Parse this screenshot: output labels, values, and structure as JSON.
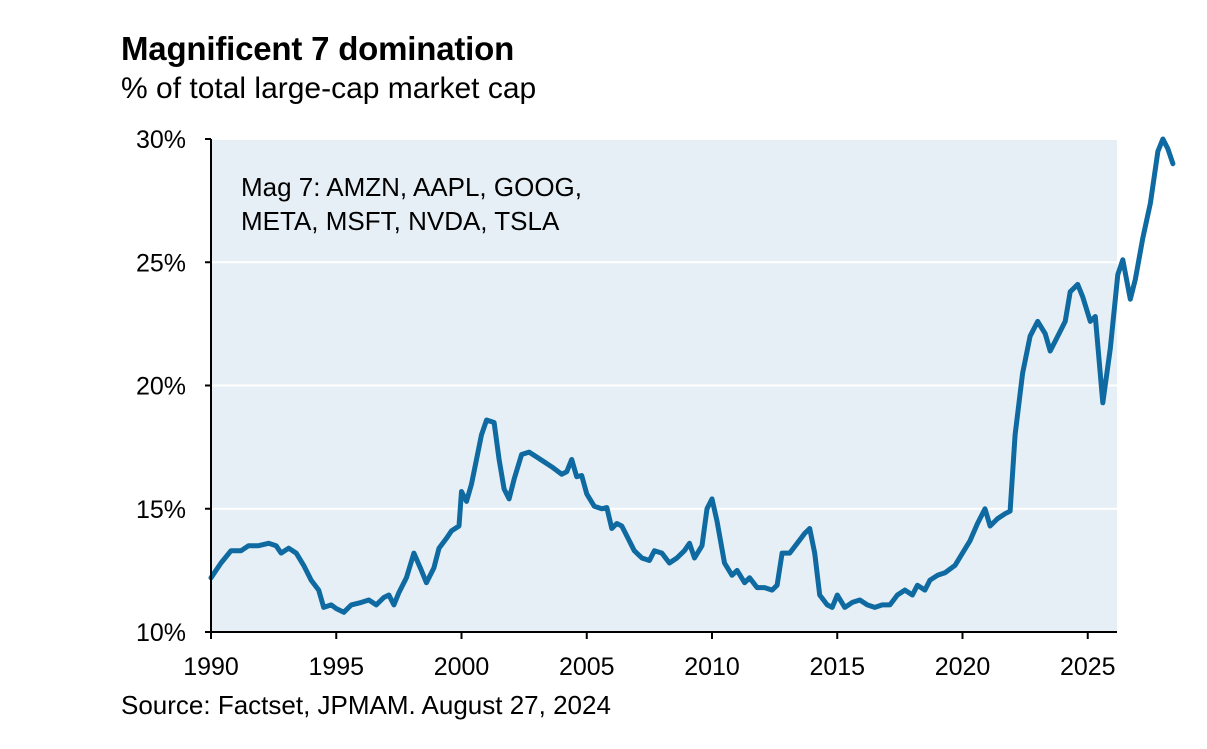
{
  "title": "Magnificent 7 domination",
  "subtitle": "% of total large-cap market cap",
  "source": "Source: Factset, JPMAM. August 27, 2024",
  "colors": {
    "line": "#0e6aa0",
    "plot_bg": "#e6eff6",
    "grid": "#ffffff",
    "axis": "#000000"
  },
  "chart_data": {
    "type": "line",
    "title": "Magnificent 7 domination",
    "subtitle": "% of total large-cap market cap",
    "xlim": [
      1990,
      2025.8
    ],
    "ylim": [
      10,
      30
    ],
    "x_ticks": [
      {
        "value": 1990,
        "label": "1990"
      },
      {
        "value": 1995,
        "label": "1995"
      },
      {
        "value": 2000,
        "label": "2000"
      },
      {
        "value": 2005,
        "label": "2005"
      },
      {
        "value": 2010,
        "label": "2010"
      },
      {
        "value": 2015,
        "label": "2015"
      },
      {
        "value": 2020,
        "label": "2020"
      },
      {
        "value": 2025,
        "label": "2025"
      }
    ],
    "y_ticks": [
      {
        "value": 10,
        "label": "10%"
      },
      {
        "value": 15,
        "label": "15%"
      },
      {
        "value": 20,
        "label": "20%"
      },
      {
        "value": 25,
        "label": "25%"
      },
      {
        "value": 30,
        "label": "30%"
      }
    ],
    "grid": "horizontal",
    "annotation": {
      "lines": [
        "Mag 7: AMZN, AAPL, GOOG,",
        "META, MSFT, NVDA, TSLA"
      ]
    },
    "series": [
      {
        "points": [
          [
            1990.0,
            12.2
          ],
          [
            1990.4,
            12.8
          ],
          [
            1990.8,
            13.3
          ],
          [
            1991.2,
            13.3
          ],
          [
            1991.5,
            13.5
          ],
          [
            1991.9,
            13.5
          ],
          [
            1992.3,
            13.6
          ],
          [
            1992.6,
            13.5
          ],
          [
            1992.8,
            13.2
          ],
          [
            1993.1,
            13.4
          ],
          [
            1993.4,
            13.2
          ],
          [
            1993.7,
            12.7
          ],
          [
            1994.0,
            12.1
          ],
          [
            1994.3,
            11.7
          ],
          [
            1994.5,
            11.0
          ],
          [
            1994.8,
            11.1
          ],
          [
            1995.0,
            10.95
          ],
          [
            1995.3,
            10.8
          ],
          [
            1995.6,
            11.1
          ],
          [
            1996.0,
            11.2
          ],
          [
            1996.3,
            11.3
          ],
          [
            1996.6,
            11.1
          ],
          [
            1996.9,
            11.4
          ],
          [
            1997.1,
            11.5
          ],
          [
            1997.3,
            11.1
          ],
          [
            1997.5,
            11.6
          ],
          [
            1997.8,
            12.2
          ],
          [
            1998.1,
            13.2
          ],
          [
            1998.4,
            12.5
          ],
          [
            1998.6,
            12.0
          ],
          [
            1998.9,
            12.6
          ],
          [
            1999.1,
            13.4
          ],
          [
            1999.4,
            13.8
          ],
          [
            1999.6,
            14.1
          ],
          [
            1999.9,
            14.3
          ],
          [
            2000.0,
            15.7
          ],
          [
            2000.2,
            15.3
          ],
          [
            2000.4,
            16.0
          ],
          [
            2000.8,
            18.0
          ],
          [
            2001.0,
            18.6
          ],
          [
            2001.3,
            18.5
          ],
          [
            2001.5,
            17.0
          ],
          [
            2001.7,
            15.8
          ],
          [
            2001.9,
            15.4
          ],
          [
            2002.1,
            16.2
          ],
          [
            2002.4,
            17.2
          ],
          [
            2002.7,
            17.3
          ],
          [
            2003.0,
            17.1
          ],
          [
            2003.3,
            16.9
          ],
          [
            2003.6,
            16.7
          ],
          [
            2004.0,
            16.4
          ],
          [
            2004.2,
            16.5
          ],
          [
            2004.4,
            17.0
          ],
          [
            2004.6,
            16.3
          ],
          [
            2004.8,
            16.35
          ],
          [
            2005.0,
            15.6
          ],
          [
            2005.3,
            15.1
          ],
          [
            2005.6,
            15.0
          ],
          [
            2005.8,
            15.05
          ],
          [
            2006.0,
            14.2
          ],
          [
            2006.2,
            14.4
          ],
          [
            2006.4,
            14.3
          ],
          [
            2006.6,
            13.9
          ],
          [
            2006.9,
            13.3
          ],
          [
            2007.2,
            13.0
          ],
          [
            2007.5,
            12.9
          ],
          [
            2007.7,
            13.3
          ],
          [
            2008.0,
            13.2
          ],
          [
            2008.3,
            12.8
          ],
          [
            2008.6,
            13.0
          ],
          [
            2008.9,
            13.3
          ],
          [
            2009.1,
            13.6
          ],
          [
            2009.3,
            13.0
          ],
          [
            2009.6,
            13.5
          ],
          [
            2009.8,
            15.0
          ],
          [
            2010.0,
            15.4
          ],
          [
            2010.2,
            14.5
          ],
          [
            2010.5,
            12.8
          ],
          [
            2010.8,
            12.3
          ],
          [
            2011.0,
            12.5
          ],
          [
            2011.3,
            12.0
          ],
          [
            2011.5,
            12.2
          ],
          [
            2011.8,
            11.8
          ],
          [
            2012.1,
            11.8
          ],
          [
            2012.4,
            11.7
          ],
          [
            2012.6,
            11.9
          ],
          [
            2012.8,
            13.2
          ],
          [
            2013.1,
            13.2
          ],
          [
            2013.4,
            13.6
          ],
          [
            2013.7,
            14.0
          ],
          [
            2013.9,
            14.2
          ],
          [
            2014.1,
            13.2
          ],
          [
            2014.3,
            11.5
          ],
          [
            2014.6,
            11.1
          ],
          [
            2014.8,
            11.0
          ],
          [
            2015.0,
            11.5
          ],
          [
            2015.3,
            11.0
          ],
          [
            2015.6,
            11.2
          ],
          [
            2015.9,
            11.3
          ],
          [
            2016.2,
            11.1
          ],
          [
            2016.5,
            11.0
          ],
          [
            2016.8,
            11.1
          ],
          [
            2017.1,
            11.1
          ],
          [
            2017.4,
            11.5
          ],
          [
            2017.7,
            11.7
          ],
          [
            2018.0,
            11.5
          ],
          [
            2018.2,
            11.9
          ],
          [
            2018.5,
            11.7
          ],
          [
            2018.7,
            12.1
          ],
          [
            2019.0,
            12.3
          ],
          [
            2019.3,
            12.4
          ],
          [
            2019.7,
            12.7
          ],
          [
            2020.0,
            13.2
          ],
          [
            2020.3,
            13.7
          ],
          [
            2020.6,
            14.4
          ],
          [
            2020.9,
            15.0
          ],
          [
            2021.1,
            14.3
          ],
          [
            2021.4,
            14.6
          ],
          [
            2021.7,
            14.8
          ],
          [
            2021.9,
            14.9
          ],
          [
            2022.1,
            18.0
          ],
          [
            2022.4,
            20.5
          ],
          [
            2022.7,
            22.0
          ],
          [
            2023.0,
            22.6
          ],
          [
            2023.3,
            22.1
          ],
          [
            2023.5,
            21.4
          ],
          [
            2023.8,
            22.0
          ],
          [
            2024.1,
            22.6
          ],
          [
            2024.3,
            23.8
          ],
          [
            2024.6,
            24.1
          ],
          [
            2024.8,
            23.6
          ],
          [
            2025.1,
            22.6
          ],
          [
            2025.3,
            22.8
          ],
          [
            2025.6,
            19.3
          ],
          [
            2025.9,
            21.5
          ],
          [
            2026.2,
            24.5
          ],
          [
            2026.4,
            25.1
          ],
          [
            2026.7,
            23.5
          ],
          [
            2026.9,
            24.3
          ],
          [
            2027.2,
            26.0
          ],
          [
            2027.5,
            27.4
          ],
          [
            2027.8,
            29.5
          ],
          [
            2028.0,
            30.0
          ],
          [
            2028.2,
            29.6
          ],
          [
            2028.4,
            29.0
          ]
        ]
      }
    ]
  }
}
